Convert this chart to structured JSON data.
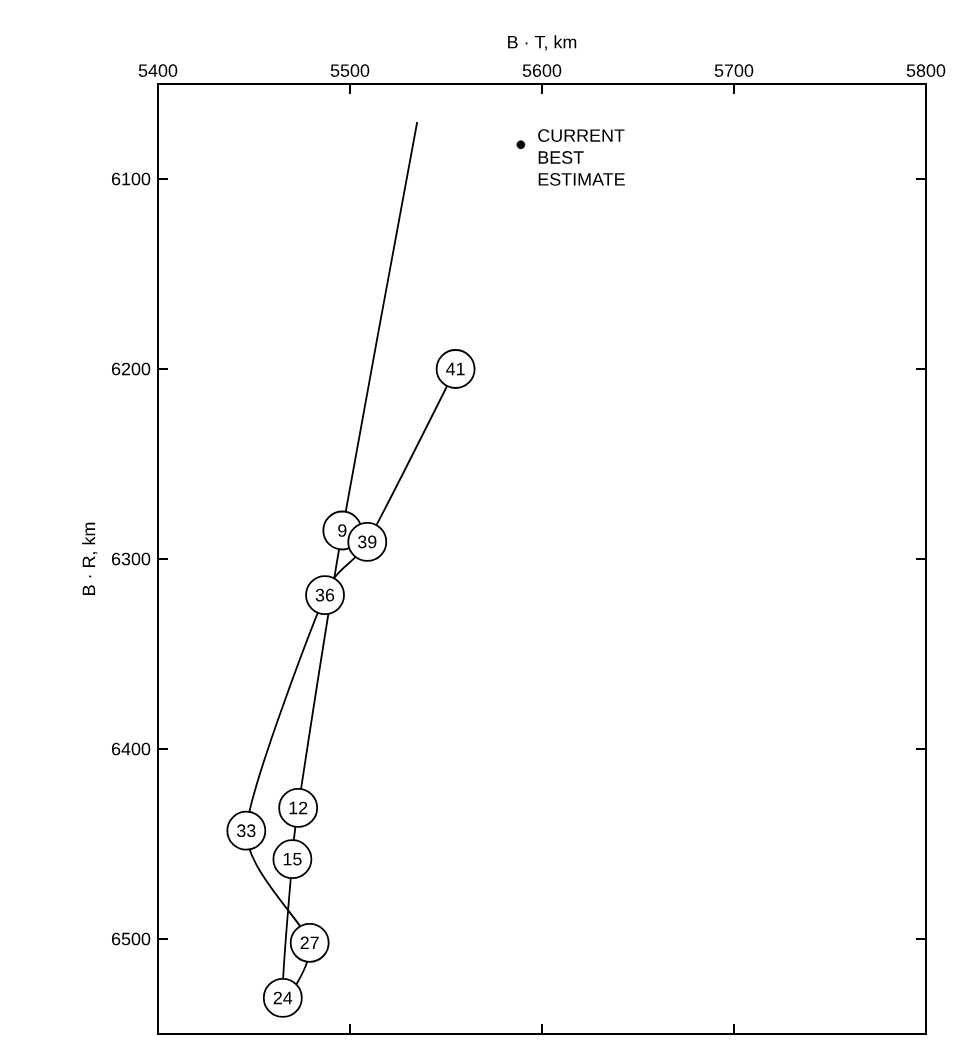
{
  "chart_data": {
    "type": "line",
    "xlabel": "B · T, km",
    "ylabel": "B · R, km",
    "xlim": [
      5400,
      5800
    ],
    "xticks": [
      5400,
      5500,
      5600,
      5700,
      5800
    ],
    "ylim": [
      6550,
      6050
    ],
    "yticks": [
      6100,
      6200,
      6300,
      6400,
      6500
    ],
    "grid": false,
    "legend": false,
    "series": [
      {
        "type": "line",
        "color": "#000000",
        "marker": "circle",
        "line_style": "solid",
        "x": [
          5535,
          5496,
          5473,
          5470,
          5465,
          5479,
          5446,
          5487,
          5509,
          5555
        ],
        "values": [
          6070,
          6285,
          6431,
          6458,
          6531,
          6502,
          6443,
          6319,
          6291,
          6200
        ]
      },
      {
        "type": "scatter",
        "name": "CURRENT BEST ESTIMATE",
        "color": "#000000",
        "marker": "circle",
        "x": [
          5589
        ],
        "values": [
          6082
        ]
      }
    ],
    "annotations": [
      {
        "text": "9",
        "x": 5496,
        "y": 6285
      },
      {
        "text": "12",
        "x": 5473,
        "y": 6431
      },
      {
        "text": "15",
        "x": 5470,
        "y": 6458
      },
      {
        "text": "24",
        "x": 5465,
        "y": 6531
      },
      {
        "text": "27",
        "x": 5479,
        "y": 6502
      },
      {
        "text": "33",
        "x": 5446,
        "y": 6443
      },
      {
        "text": "36",
        "x": 5487,
        "y": 6319
      },
      {
        "text": "39",
        "x": 5509,
        "y": 6291
      },
      {
        "text": "41",
        "x": 5555,
        "y": 6200
      }
    ]
  }
}
